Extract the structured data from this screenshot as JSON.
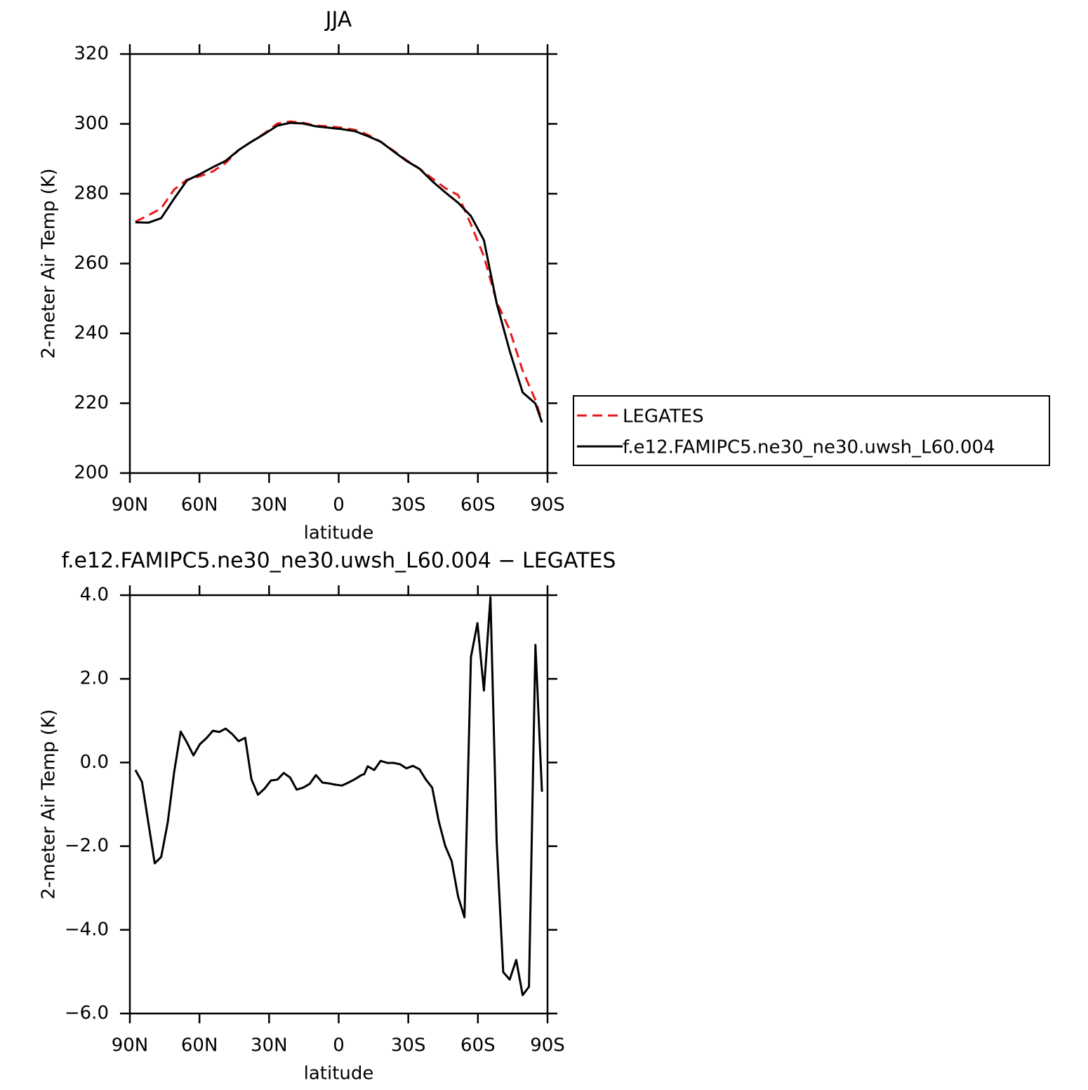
{
  "chart_data": [
    {
      "type": "line",
      "title": "JJA",
      "xlabel": "latitude",
      "ylabel": "2-meter Air Temp (K)",
      "x": [
        87.6,
        82.0,
        76.5,
        70.9,
        65.4,
        59.8,
        54.2,
        48.7,
        43.1,
        37.6,
        32.0,
        26.4,
        20.9,
        15.3,
        9.8,
        4.2,
        -1.4,
        -7.0,
        -12.5,
        -18.1,
        -23.7,
        -29.2,
        -34.8,
        -40.3,
        -45.9,
        -51.5,
        -57.0,
        -62.6,
        -68.1,
        -73.7,
        -79.3,
        -84.8,
        -87.6
      ],
      "series": [
        {
          "name": "LEGATES",
          "color": "#e8191a",
          "dash": true,
          "values": [
            272.0,
            273.8,
            275.8,
            281.2,
            284.0,
            285.0,
            286.4,
            288.8,
            292.5,
            294.9,
            297.3,
            300.1,
            300.7,
            300.3,
            299.5,
            299.3,
            298.9,
            298.3,
            296.9,
            294.9,
            292.3,
            289.6,
            287.2,
            284.4,
            281.6,
            279.6,
            271.2,
            262.1,
            249.0,
            241.0,
            229.3,
            220.9,
            214.9
          ]
        },
        {
          "name": "f.e12.FAMIPC5.ne30_ne30.uwsh_L60.004",
          "color": "#000000",
          "dash": false,
          "values": [
            271.8,
            271.7,
            273.0,
            278.6,
            283.8,
            285.6,
            287.6,
            289.4,
            292.5,
            294.9,
            297.1,
            299.5,
            300.3,
            300.1,
            299.3,
            298.9,
            298.5,
            297.9,
            296.5,
            294.9,
            292.1,
            289.4,
            287.2,
            283.6,
            280.4,
            277.4,
            273.6,
            266.7,
            248.6,
            235.0,
            223.1,
            219.9,
            214.5
          ]
        }
      ],
      "xlim": [
        90,
        -90
      ],
      "xticks": [
        {
          "value": 90,
          "label": "90N"
        },
        {
          "value": 60,
          "label": "60N"
        },
        {
          "value": 30,
          "label": "30N"
        },
        0,
        {
          "value": -30,
          "label": "30S"
        },
        {
          "value": -60,
          "label": "60S"
        },
        {
          "value": -90,
          "label": "90S"
        }
      ],
      "ylim": [
        200,
        320
      ],
      "yticks": [
        200,
        220,
        240,
        260,
        280,
        300,
        320
      ],
      "legend": "right"
    },
    {
      "type": "line",
      "title": "f.e12.FAMIPC5.ne30_ne30.uwsh_L60.004 − LEGATES",
      "xlabel": "latitude",
      "ylabel": "2-meter Air Temp (K)",
      "x": [
        87.6,
        84.8,
        79.3,
        76.5,
        73.7,
        70.9,
        68.1,
        65.4,
        62.6,
        59.8,
        57.0,
        54.2,
        51.5,
        48.7,
        45.9,
        43.1,
        40.3,
        37.6,
        34.8,
        32.0,
        29.2,
        26.4,
        23.7,
        20.9,
        18.1,
        15.3,
        12.5,
        9.8,
        7.0,
        4.2,
        1.4,
        -1.4,
        -4.2,
        -7.0,
        -9.8,
        -11.0,
        -12.5,
        -15.3,
        -18.1,
        -20.9,
        -23.7,
        -26.4,
        -29.2,
        -32.0,
        -34.8,
        -37.6,
        -40.3,
        -43.1,
        -45.9,
        -48.7,
        -51.5,
        -54.2,
        -57.0,
        -59.8,
        -62.6,
        -65.4,
        -68.1,
        -70.9,
        -73.7,
        -76.5,
        -79.3,
        -82.0,
        -84.8,
        -87.6
      ],
      "values": [
        -0.18,
        -0.46,
        -2.41,
        -2.26,
        -1.44,
        -0.23,
        0.74,
        0.48,
        0.17,
        0.44,
        0.58,
        0.76,
        0.73,
        0.81,
        0.68,
        0.51,
        0.59,
        -0.4,
        -0.77,
        -0.63,
        -0.43,
        -0.41,
        -0.25,
        -0.36,
        -0.65,
        -0.6,
        -0.51,
        -0.3,
        -0.48,
        -0.5,
        -0.53,
        -0.55,
        -0.48,
        -0.4,
        -0.3,
        -0.28,
        -0.09,
        -0.18,
        0.04,
        -0.01,
        -0.01,
        -0.04,
        -0.14,
        -0.08,
        -0.16,
        -0.41,
        -0.6,
        -1.4,
        -1.99,
        -2.36,
        -3.21,
        -3.7,
        2.52,
        3.33,
        1.72,
        3.95,
        -1.91,
        -5.01,
        -5.19,
        -4.72,
        -5.56,
        -5.36,
        2.81,
        -0.7
      ],
      "color": "#000000",
      "xlim": [
        90,
        -90
      ],
      "xticks": [
        {
          "value": 90,
          "label": "90N"
        },
        {
          "value": 60,
          "label": "60N"
        },
        {
          "value": 30,
          "label": "30N"
        },
        0,
        {
          "value": -30,
          "label": "30S"
        },
        {
          "value": -60,
          "label": "60S"
        },
        {
          "value": -90,
          "label": "90S"
        }
      ],
      "ylim": [
        -6,
        4
      ],
      "yticks": [
        {
          "value": -6,
          "label": "−6.0"
        },
        {
          "value": -4,
          "label": "−4.0"
        },
        {
          "value": -2,
          "label": "−2.0"
        },
        {
          "value": 0,
          "label": "0.0"
        },
        {
          "value": 2,
          "label": "2.0"
        },
        {
          "value": 4,
          "label": "4.0"
        }
      ]
    }
  ]
}
